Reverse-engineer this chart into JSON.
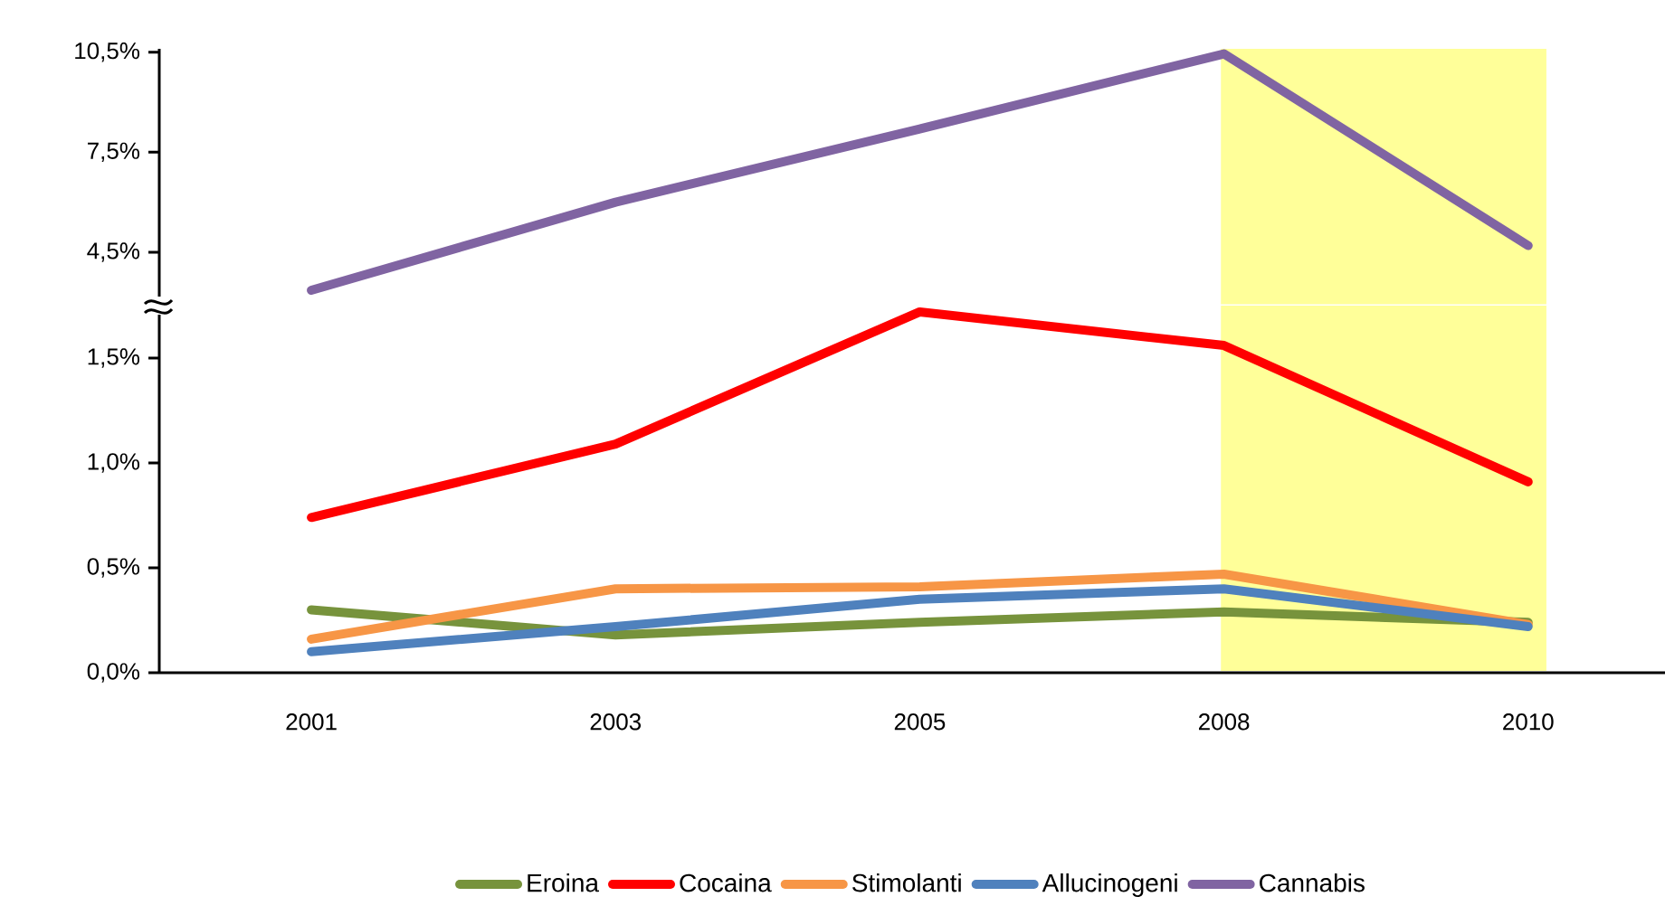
{
  "chart_data": [
    {
      "type": "line",
      "categories": [
        "2001",
        "2003",
        "2005",
        "2008",
        "2010"
      ],
      "series": [
        {
          "name": "Cannabis",
          "color": "#8064a2",
          "values": [
            3.36,
            6.0,
            8.2,
            10.45,
            4.7
          ]
        }
      ],
      "ylim": [
        2.9,
        10.6
      ],
      "yticks": [
        {
          "value": 4.5,
          "label": "4,5%"
        },
        {
          "value": 7.5,
          "label": "7,5%"
        },
        {
          "value": 10.5,
          "label": "10,5%"
        }
      ],
      "bands": [
        {
          "axis": "x",
          "from": "2008",
          "to": "2010",
          "color": "#ffff99"
        }
      ],
      "tick_labels": "y"
    },
    {
      "type": "line",
      "categories": [
        "2001",
        "2003",
        "2005",
        "2008",
        "2010"
      ],
      "series": [
        {
          "name": "Eroina",
          "color": "#77933c",
          "values": [
            0.3,
            0.18,
            0.24,
            0.29,
            0.24
          ]
        },
        {
          "name": "Cocaina",
          "color": "#ff0000",
          "values": [
            0.74,
            1.09,
            1.72,
            1.56,
            0.91
          ]
        },
        {
          "name": "Stimolanti",
          "color": "#f79646",
          "values": [
            0.16,
            0.4,
            0.41,
            0.47,
            0.23
          ]
        },
        {
          "name": "Allucinogeni",
          "color": "#4f81bd",
          "values": [
            0.1,
            0.22,
            0.35,
            0.4,
            0.22
          ]
        }
      ],
      "ylim": [
        0,
        1.75
      ],
      "yticks": [
        {
          "value": 0,
          "label": "0,0%"
        },
        {
          "value": 0.5,
          "label": "0,5%"
        },
        {
          "value": 1.0,
          "label": "1,0%"
        },
        {
          "value": 1.5,
          "label": "1,5%"
        }
      ],
      "bands": [
        {
          "axis": "x",
          "from": "2008",
          "to": "2010",
          "color": "#ffff99"
        }
      ],
      "legend": "bottom"
    }
  ]
}
